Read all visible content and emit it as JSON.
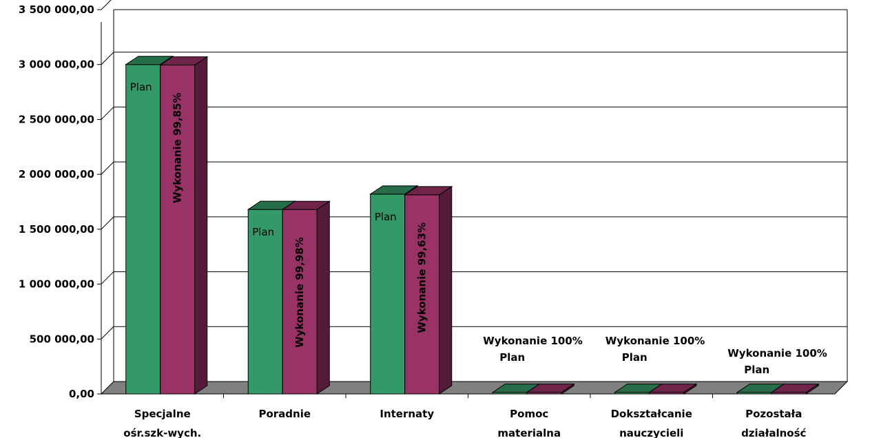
{
  "chart_data": {
    "type": "bar",
    "title": "",
    "xlabel": "",
    "ylabel": "",
    "ylim": [
      0,
      3500000
    ],
    "yticks": [
      "0,00",
      "500 000,00",
      "1 000 000,00",
      "1 500 000,00",
      "2 000 000,00",
      "2 500 000,00",
      "3 000 000,00",
      "3 500 000,00"
    ],
    "categories": [
      [
        "Specjalne",
        "ośr.szk-wych."
      ],
      [
        "Poradnie"
      ],
      [
        "Internaty"
      ],
      [
        "Pomoc",
        "materialna"
      ],
      [
        "Dokształcanie",
        "nauczycieli"
      ],
      [
        "Pozostała",
        "działalność"
      ]
    ],
    "series": [
      {
        "name": "Plan",
        "color": "#339966",
        "values": [
          3000000,
          1680000,
          1820000,
          15000,
          15000,
          15000
        ],
        "labels": [
          "Plan",
          "Plan",
          "Plan",
          "Plan",
          "Plan",
          "Plan"
        ]
      },
      {
        "name": "Wykonanie",
        "color": "#993366",
        "values": [
          2995500,
          1679664,
          1813266,
          15000,
          15000,
          15000
        ],
        "labels": [
          "Wykonanie 99,85%",
          "Wykonanie 99,98%",
          "Wykonanie 99,63%",
          "Wykonanie 100%",
          "Wykonanie 100%",
          "Wykonanie 100%"
        ]
      }
    ],
    "grid": true,
    "legend": "none",
    "style": "3d-clustered-column"
  }
}
